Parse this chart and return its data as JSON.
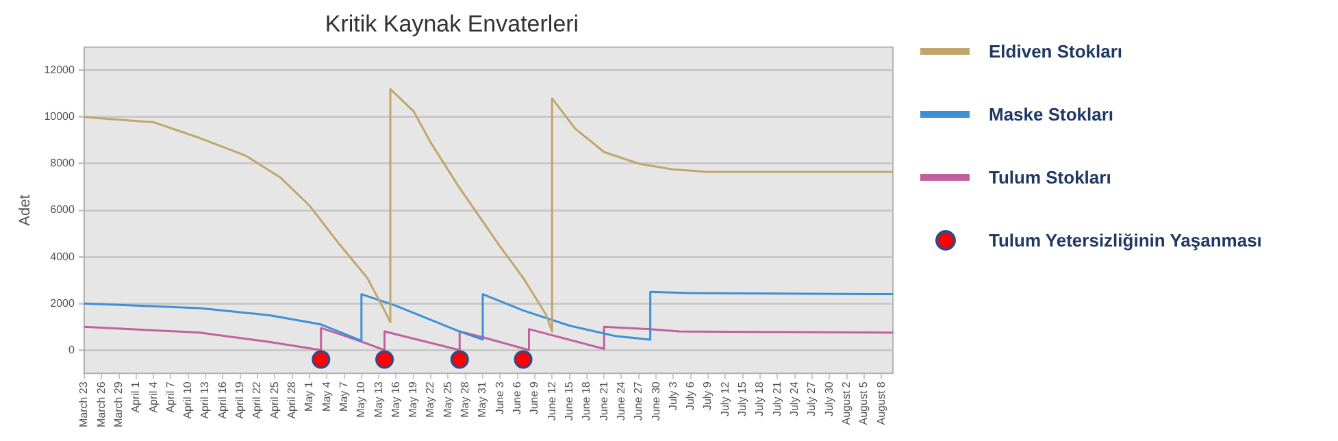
{
  "chart_data": {
    "type": "line",
    "title": "Kritik Kaynak Envaterleri",
    "ylabel": "Adet",
    "xlim": [
      "--03-23",
      "--08-10"
    ],
    "ylim": [
      -1000,
      13000
    ],
    "yticks": [
      0,
      2000,
      4000,
      6000,
      8000,
      10000,
      12000
    ],
    "xticks": [
      {
        "value": "--03-23",
        "label": "March 23"
      },
      {
        "value": "--03-26",
        "label": "March 26"
      },
      {
        "value": "--03-29",
        "label": "March 29"
      },
      {
        "value": "--04-01",
        "label": "April 1"
      },
      {
        "value": "--04-04",
        "label": "April 4"
      },
      {
        "value": "--04-07",
        "label": "April 7"
      },
      {
        "value": "--04-10",
        "label": "April 10"
      },
      {
        "value": "--04-13",
        "label": "April 13"
      },
      {
        "value": "--04-16",
        "label": "April 16"
      },
      {
        "value": "--04-19",
        "label": "April 19"
      },
      {
        "value": "--04-22",
        "label": "April 22"
      },
      {
        "value": "--04-25",
        "label": "April 25"
      },
      {
        "value": "--04-28",
        "label": "April 28"
      },
      {
        "value": "--05-01",
        "label": "May 1"
      },
      {
        "value": "--05-04",
        "label": "May 4"
      },
      {
        "value": "--05-07",
        "label": "May 7"
      },
      {
        "value": "--05-10",
        "label": "May 10"
      },
      {
        "value": "--05-13",
        "label": "May 13"
      },
      {
        "value": "--05-16",
        "label": "May 16"
      },
      {
        "value": "--05-19",
        "label": "May 19"
      },
      {
        "value": "--05-22",
        "label": "May 22"
      },
      {
        "value": "--05-25",
        "label": "May 25"
      },
      {
        "value": "--05-28",
        "label": "May 28"
      },
      {
        "value": "--05-31",
        "label": "May 31"
      },
      {
        "value": "--06-03",
        "label": "June 3"
      },
      {
        "value": "--06-06",
        "label": "June 6"
      },
      {
        "value": "--06-09",
        "label": "June 9"
      },
      {
        "value": "--06-12",
        "label": "June 12"
      },
      {
        "value": "--06-15",
        "label": "June 15"
      },
      {
        "value": "--06-18",
        "label": "June 18"
      },
      {
        "value": "--06-21",
        "label": "June 21"
      },
      {
        "value": "--06-24",
        "label": "June 24"
      },
      {
        "value": "--06-27",
        "label": "June 27"
      },
      {
        "value": "--06-30",
        "label": "June 30"
      },
      {
        "value": "--07-03",
        "label": "July 3"
      },
      {
        "value": "--07-06",
        "label": "July 6"
      },
      {
        "value": "--07-09",
        "label": "July 9"
      },
      {
        "value": "--07-12",
        "label": "July 12"
      },
      {
        "value": "--07-15",
        "label": "July 15"
      },
      {
        "value": "--07-18",
        "label": "July 18"
      },
      {
        "value": "--07-21",
        "label": "July 21"
      },
      {
        "value": "--07-24",
        "label": "July 24"
      },
      {
        "value": "--07-27",
        "label": "July 27"
      },
      {
        "value": "--07-30",
        "label": "July 30"
      },
      {
        "value": "--08-02",
        "label": "August 2"
      },
      {
        "value": "--08-05",
        "label": "August 5"
      },
      {
        "value": "--08-08",
        "label": "August 8"
      }
    ],
    "grid": "y",
    "legend": "right",
    "marker": "none",
    "line_style": "solid",
    "series": [
      {
        "name": "Eldiven Stokları",
        "color": "#c2a56a",
        "x": [
          "--03-23",
          "--04-04",
          "--04-12",
          "--04-20",
          "--04-26",
          "--05-01",
          "--05-06",
          "--05-11",
          "--05-14",
          "--05-15",
          "--05-15",
          "--05-19",
          "--05-22",
          "--05-27",
          "--06-03",
          "--06-07",
          "--06-11",
          "--06-12",
          "--06-12",
          "--06-16",
          "--06-21",
          "--06-27",
          "--07-03",
          "--07-09",
          "--08-10"
        ],
        "values": [
          10000,
          9780,
          9100,
          8340,
          7400,
          6200,
          4600,
          3100,
          1700,
          1200,
          11200,
          10260,
          8900,
          6950,
          4450,
          3100,
          1500,
          800,
          10800,
          9500,
          8500,
          8000,
          7750,
          7650,
          7650
        ]
      },
      {
        "name": "Maske Stokları",
        "color": "#3d8fd6",
        "x": [
          "--03-23",
          "--04-12",
          "--04-24",
          "--05-03",
          "--05-10",
          "--05-10",
          "--05-16",
          "--05-27",
          "--05-31",
          "--05-31",
          "--06-07",
          "--06-15",
          "--06-23",
          "--06-29",
          "--06-29",
          "--07-06",
          "--08-10"
        ],
        "values": [
          2000,
          1800,
          1500,
          1100,
          400,
          2400,
          1900,
          800,
          450,
          2400,
          1700,
          1050,
          600,
          450,
          2500,
          2450,
          2400
        ]
      },
      {
        "name": "Tulum Stokları",
        "color": "#c2609e",
        "x": [
          "--03-23",
          "--04-12",
          "--04-24",
          "--05-03",
          "--05-03",
          "--05-09",
          "--05-14",
          "--05-14",
          "--05-27",
          "--05-27",
          "--05-31",
          "--06-08",
          "--06-08",
          "--06-21",
          "--06-21",
          "--06-29",
          "--07-04",
          "--08-10"
        ],
        "values": [
          1000,
          750,
          350,
          0,
          950,
          450,
          0,
          800,
          0,
          800,
          550,
          0,
          900,
          50,
          1000,
          900,
          800,
          750
        ]
      },
      {
        "name": "Tulum Yetersizliğinin Yaşanması",
        "type": "scatter",
        "marker": "circle",
        "color": "#ff0000",
        "x": [
          "--05-03",
          "--05-14",
          "--05-27",
          "--06-07"
        ],
        "values": [
          -400,
          -400,
          -400,
          -400
        ]
      }
    ]
  }
}
